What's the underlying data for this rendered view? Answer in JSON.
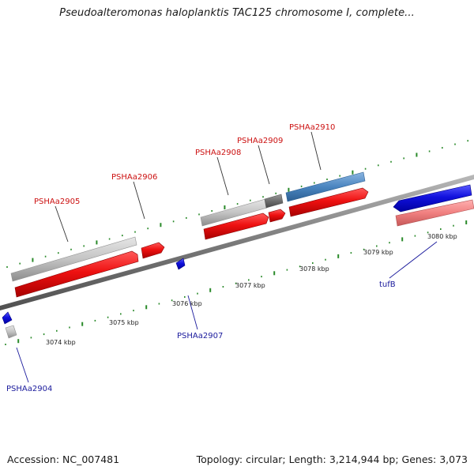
{
  "title": "Pseudoalteromonas haloplanktis TAC125 chromosome I, complete...",
  "footer": {
    "accession": "Accession: NC_007481",
    "summary": "Topology: circular; Length: 3,214,944 bp; Genes: 3,073"
  },
  "scale_labels": [
    "3074 kbp",
    "3075 kbp",
    "3076 kbp",
    "3077 kbp",
    "3078 kbp",
    "3079 kbp",
    "3080 kbp"
  ],
  "gene_labels": {
    "forward": [
      "PSHAa2905",
      "PSHAa2906",
      "PSHAa2908",
      "PSHAa2909",
      "PSHAa2910"
    ],
    "reverse": [
      "PSHAa2904",
      "PSHAa2907",
      "tufB"
    ]
  },
  "colors": {
    "forward_gene": "#ee1111",
    "reverse_gene": "#1111dd",
    "rna_gene": "#4a85c0",
    "label_forward": "#cc1111",
    "label_reverse": "#1a1a9c",
    "feature_grey": "#c4c4c4",
    "backbone": "#808080",
    "tick": "#2a8a2a"
  }
}
